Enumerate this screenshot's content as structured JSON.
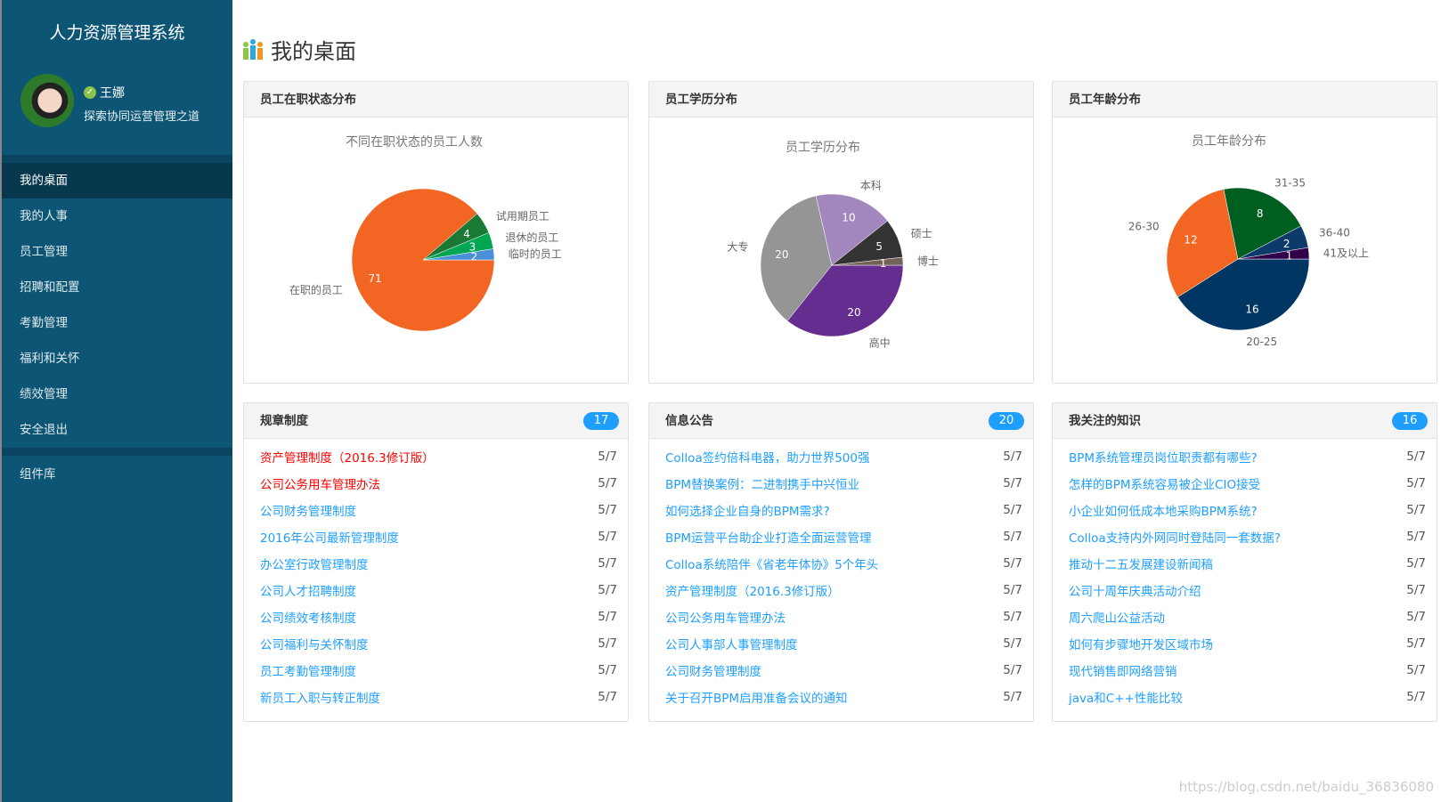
{
  "sidebar": {
    "app_title": "人力资源管理系统",
    "user_name": "王娜",
    "user_motto": "探索协同运营管理之道",
    "menu": [
      {
        "label": "我的桌面",
        "active": true
      },
      {
        "label": "我的人事"
      },
      {
        "label": "员工管理"
      },
      {
        "label": "招聘和配置"
      },
      {
        "label": "考勤管理"
      },
      {
        "label": "福利和关怀"
      },
      {
        "label": "绩效管理"
      },
      {
        "label": "安全退出"
      }
    ],
    "extra_menu": [
      {
        "label": "组件库"
      }
    ]
  },
  "header": {
    "title": "我的桌面",
    "icon": "bar-people-icon"
  },
  "panels": {
    "status": {
      "title": "员工在职状态分布"
    },
    "education": {
      "title": "员工学历分布"
    },
    "age": {
      "title": "员工年龄分布"
    }
  },
  "chart_data": [
    {
      "type": "pie",
      "title": "不同在职状态的员工人数",
      "labels": [
        "在职的员工",
        "试用期员工",
        "退休的员工",
        "临时的员工"
      ],
      "values": [
        71,
        4,
        3,
        2
      ],
      "colors": [
        "#f26522",
        "#1a7a35",
        "#00a651",
        "#4a90d9"
      ]
    },
    {
      "type": "pie",
      "title": "员工学历分布",
      "labels": [
        "高中",
        "大专",
        "本科",
        "硕士",
        "博士"
      ],
      "values": [
        20,
        20,
        10,
        5,
        1
      ],
      "colors": [
        "#662d91",
        "#959595",
        "#a286be",
        "#333333",
        "#736357"
      ]
    },
    {
      "type": "pie",
      "title": "员工年龄分布",
      "labels": [
        "20-25",
        "26-30",
        "31-35",
        "36-40",
        "41及以上"
      ],
      "values": [
        16,
        12,
        8,
        2,
        1
      ],
      "colors": [
        "#003663",
        "#f26522",
        "#005e20",
        "#0b3a6b",
        "#32004b"
      ]
    }
  ],
  "lists": [
    {
      "title": "规章制度",
      "count": "17",
      "items": [
        {
          "text": "资产管理制度（2016.3修订版）",
          "date": "5/7",
          "highlight": true
        },
        {
          "text": "公司公务用车管理办法",
          "date": "5/7",
          "highlight": true
        },
        {
          "text": "公司财务管理制度",
          "date": "5/7"
        },
        {
          "text": "2016年公司最新管理制度",
          "date": "5/7"
        },
        {
          "text": "办公室行政管理制度",
          "date": "5/7"
        },
        {
          "text": "公司人才招聘制度",
          "date": "5/7"
        },
        {
          "text": "公司绩效考核制度",
          "date": "5/7"
        },
        {
          "text": "公司福利与关怀制度",
          "date": "5/7"
        },
        {
          "text": "员工考勤管理制度",
          "date": "5/7"
        },
        {
          "text": "新员工入职与转正制度",
          "date": "5/7"
        }
      ]
    },
    {
      "title": "信息公告",
      "count": "20",
      "items": [
        {
          "text": "Colloa签约倍科电器，助力世界500强",
          "date": "5/7"
        },
        {
          "text": "BPM替换案例：二进制携手中兴恒业",
          "date": "5/7"
        },
        {
          "text": "如何选择企业自身的BPM需求?",
          "date": "5/7"
        },
        {
          "text": "BPM运营平台助企业打造全面运营管理",
          "date": "5/7"
        },
        {
          "text": "Colloa系统陪伴《省老年体协》5个年头",
          "date": "5/7"
        },
        {
          "text": "资产管理制度（2016.3修订版）",
          "date": "5/7"
        },
        {
          "text": "公司公务用车管理办法",
          "date": "5/7"
        },
        {
          "text": "公司人事部人事管理制度",
          "date": "5/7"
        },
        {
          "text": "公司财务管理制度",
          "date": "5/7"
        },
        {
          "text": "关于召开BPM启用准备会议的通知",
          "date": "5/7"
        }
      ]
    },
    {
      "title": "我关注的知识",
      "count": "16",
      "items": [
        {
          "text": "BPM系统管理员岗位职责都有哪些?",
          "date": "5/7"
        },
        {
          "text": " 怎样的BPM系统容易被企业CIO接受",
          "date": "5/7"
        },
        {
          "text": "小企业如何低成本地采购BPM系统?",
          "date": "5/7"
        },
        {
          "text": "Colloa支持内外网同时登陆同一套数据?",
          "date": "5/7"
        },
        {
          "text": "推动十二五发展建设新闻稿",
          "date": "5/7"
        },
        {
          "text": "公司十周年庆典活动介绍",
          "date": "5/7"
        },
        {
          "text": "周六爬山公益活动",
          "date": "5/7"
        },
        {
          "text": "如何有步骤地开发区域市场",
          "date": "5/7"
        },
        {
          "text": "现代销售即网络营销",
          "date": "5/7"
        },
        {
          "text": " java和C++性能比较",
          "date": "5/7"
        }
      ]
    }
  ],
  "watermark": "https://blog.csdn.net/baidu_36836080"
}
